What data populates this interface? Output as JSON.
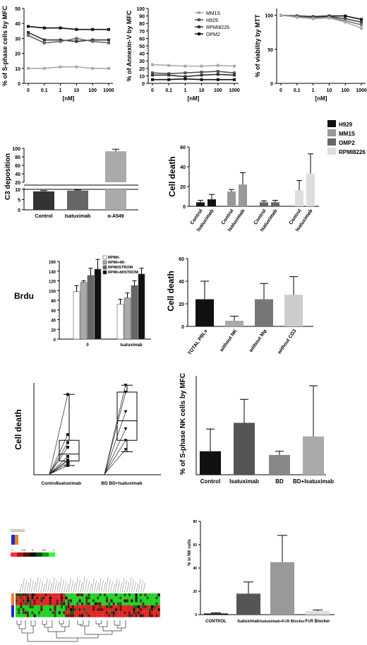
{
  "colors": {
    "axis": "#000000",
    "black": "#111111",
    "dark_gray": "#555555",
    "mid_gray": "#888888",
    "light_gray": "#bbbbbb",
    "very_light": "#dddddd",
    "heat_red": "#d01010",
    "heat_green": "#10c010",
    "heat_black": "#111111",
    "orange": "#f08020",
    "blue": "#1030d0"
  },
  "chart_data": [
    {
      "id": "a1",
      "type": "line",
      "ylabel": "% of S-phase cells by MFC",
      "xlabel": "[nM]",
      "x_ticks": [
        "0",
        "0.1",
        "1",
        "10",
        "100",
        "1000"
      ],
      "y_ticks": [
        "0",
        "10",
        "20",
        "30",
        "40",
        "50"
      ],
      "ylim": [
        0,
        50
      ],
      "series": [
        {
          "values": [
            38,
            37,
            37,
            36,
            36,
            36
          ],
          "color": "#111111"
        },
        {
          "values": [
            34,
            29,
            29,
            28,
            29,
            29
          ],
          "color": "#333333"
        },
        {
          "values": [
            32,
            27,
            28,
            30,
            28,
            27
          ],
          "color": "#666666"
        },
        {
          "values": [
            10,
            10,
            11,
            11,
            10,
            10
          ],
          "color": "#aaaaaa"
        }
      ]
    },
    {
      "id": "a2",
      "type": "line",
      "ylabel": "% of Annexin-V by MFC",
      "xlabel": "[nM]",
      "x_ticks": [
        "0",
        "0.1",
        "1",
        "10",
        "100",
        "1000"
      ],
      "y_ticks": [
        "0",
        "10",
        "20",
        "30",
        "40",
        "50",
        "60",
        "70",
        "80",
        "90",
        "100"
      ],
      "ylim": [
        0,
        100
      ],
      "legend": [
        "MM1S",
        "H929",
        "RPMI8226",
        "OPM2"
      ],
      "legend_position": "top-right",
      "series": [
        {
          "name": "MM1S",
          "values": [
            25,
            24,
            23,
            23,
            24,
            23
          ],
          "color": "#aaaaaa"
        },
        {
          "name": "H929",
          "values": [
            14,
            13,
            14,
            15,
            16,
            14
          ],
          "color": "#555555"
        },
        {
          "name": "RPMI8226",
          "values": [
            11,
            11,
            9,
            11,
            12,
            11
          ],
          "color": "#333333"
        },
        {
          "name": "OPM2",
          "values": [
            5,
            5,
            6,
            5,
            5,
            5
          ],
          "color": "#111111"
        }
      ]
    },
    {
      "id": "a3",
      "type": "line",
      "ylabel": "% of viability by MTT",
      "xlabel": "[nM]",
      "x_ticks": [
        "0",
        "0.1",
        "1",
        "10",
        "100",
        "1000"
      ],
      "y_ticks": [
        "0",
        "50",
        "100"
      ],
      "ylim": [
        0,
        110
      ],
      "series": [
        {
          "values": [
            100,
            99,
            98,
            99,
            99,
            94
          ],
          "color": "#111111"
        },
        {
          "values": [
            100,
            98,
            97,
            98,
            95,
            90
          ],
          "color": "#444444"
        },
        {
          "values": [
            100,
            98,
            96,
            97,
            92,
            86
          ],
          "color": "#777777"
        },
        {
          "values": [
            100,
            97,
            95,
            96,
            90,
            81
          ],
          "color": "#aaaaaa"
        }
      ]
    },
    {
      "id": "b1",
      "type": "bar",
      "ylabel": "C3 deposition",
      "categories": [
        "Control",
        "Isatuximab",
        "α-A549"
      ],
      "y_ticks": [
        "0",
        "5",
        "10",
        "20",
        "40",
        "60",
        "80",
        "100"
      ],
      "values": [
        9,
        9.4,
        93
      ],
      "errors": [
        0.4,
        0.3,
        5
      ],
      "colors": [
        "#333333",
        "#666666",
        "#aaaaaa"
      ]
    },
    {
      "id": "b2",
      "type": "bar",
      "ylabel": "Cell death",
      "categories": [
        "Control",
        "Isatuximab",
        "Control",
        "Isatuximab",
        "Control",
        "Isatuximab",
        "Control",
        "Isatuximab"
      ],
      "y_ticks": [
        "0",
        "20",
        "40",
        "60"
      ],
      "ylim": [
        0,
        60
      ],
      "values": [
        4,
        7,
        15,
        22,
        4,
        4,
        16,
        33
      ],
      "errors": [
        2,
        5,
        2,
        12,
        1.5,
        2,
        10,
        20
      ],
      "colors": [
        "#111111",
        "#111111",
        "#999999",
        "#999999",
        "#666666",
        "#666666",
        "#dddddd",
        "#dddddd"
      ],
      "legend": [
        "H929",
        "MM1S",
        "OMP2",
        "RPMI8226"
      ],
      "legend_colors": [
        "#111111",
        "#999999",
        "#666666",
        "#dddddd"
      ],
      "legend_position": "right"
    },
    {
      "id": "c1",
      "type": "bar",
      "ylabel": "Brdu",
      "categories": [
        "0",
        "Isatuximab"
      ],
      "y_ticks": [
        "0",
        "20",
        "40",
        "60",
        "80",
        "100",
        "120",
        "140",
        "160"
      ],
      "ylim": [
        0,
        160
      ],
      "series": [
        {
          "name": "RPMI/-",
          "values": [
            98,
            72
          ],
          "errors": [
            12,
            10
          ],
          "color": "#ffffff"
        },
        {
          "name": "RPMI+M/-",
          "values": [
            117,
            85
          ],
          "errors": [
            3,
            10
          ],
          "color": "#aaaaaa"
        },
        {
          "name": "RPMI/STROM",
          "values": [
            131,
            110
          ],
          "errors": [
            15,
            10
          ],
          "color": "#666666"
        },
        {
          "name": "RPMI+M/STROM",
          "values": [
            144,
            134
          ],
          "errors": [
            20,
            12
          ],
          "color": "#111111"
        }
      ],
      "legend_position": "top"
    },
    {
      "id": "c2",
      "type": "bar",
      "ylabel": "Cell death",
      "categories": [
        "TOTAL PBLs",
        "without NK",
        "without Mφ",
        "without CD3"
      ],
      "y_ticks": [
        "0",
        "20",
        "40",
        "60"
      ],
      "ylim": [
        0,
        60
      ],
      "values": [
        24,
        5,
        24,
        28
      ],
      "errors": [
        16,
        4,
        14,
        16
      ],
      "colors": [
        "#111111",
        "#aaaaaa",
        "#777777",
        "#cccccc"
      ]
    },
    {
      "id": "d1",
      "type": "scatter",
      "ylabel": "Cell death",
      "categories": [
        "Control",
        "Isatuximab",
        "BD",
        "BD+Isatuximab"
      ],
      "ylim": [
        0,
        80
      ],
      "box_isatuximab": {
        "min": 8,
        "q1": 12,
        "median": 18,
        "q3": 30,
        "max": 70
      },
      "box_bd_isatuximab": {
        "min": 20,
        "q1": 30,
        "median": 47,
        "q3": 72,
        "max": 78
      }
    },
    {
      "id": "d2",
      "type": "bar",
      "ylabel": "% of S-phase NK cells by MFC",
      "categories": [
        "Control",
        "Isatuximab",
        "BD",
        "BD+Isatuximab"
      ],
      "y_ticks": [
        "0",
        "1",
        "2",
        "3",
        "4"
      ],
      "ylim": [
        0,
        4
      ],
      "values": [
        0.95,
        2.1,
        0.8,
        1.55
      ],
      "errors": [
        0.9,
        0.95,
        0.15,
        2.05
      ],
      "colors": [
        "#111111",
        "#555555",
        "#888888",
        "#aaaaaa"
      ]
    },
    {
      "id": "e1",
      "type": "heatmap",
      "scale_labels": [
        "-1",
        "-0.5",
        "0",
        "0.5",
        "1"
      ],
      "rows": 8,
      "cols": 64
    },
    {
      "id": "e2",
      "type": "bar",
      "ylabel": "% in NK cells",
      "categories": [
        "CONTROL",
        "Isatuximab",
        "Isatuximab+FcR Blocker",
        "FcR Blocker"
      ],
      "y_ticks": [
        "0",
        "20",
        "40",
        "60",
        "80"
      ],
      "ylim": [
        0,
        80
      ],
      "values": [
        1,
        18,
        45,
        3
      ],
      "errors": [
        0.5,
        10,
        23,
        1
      ],
      "colors": [
        "#111111",
        "#555555",
        "#999999",
        "#dddddd"
      ]
    }
  ]
}
